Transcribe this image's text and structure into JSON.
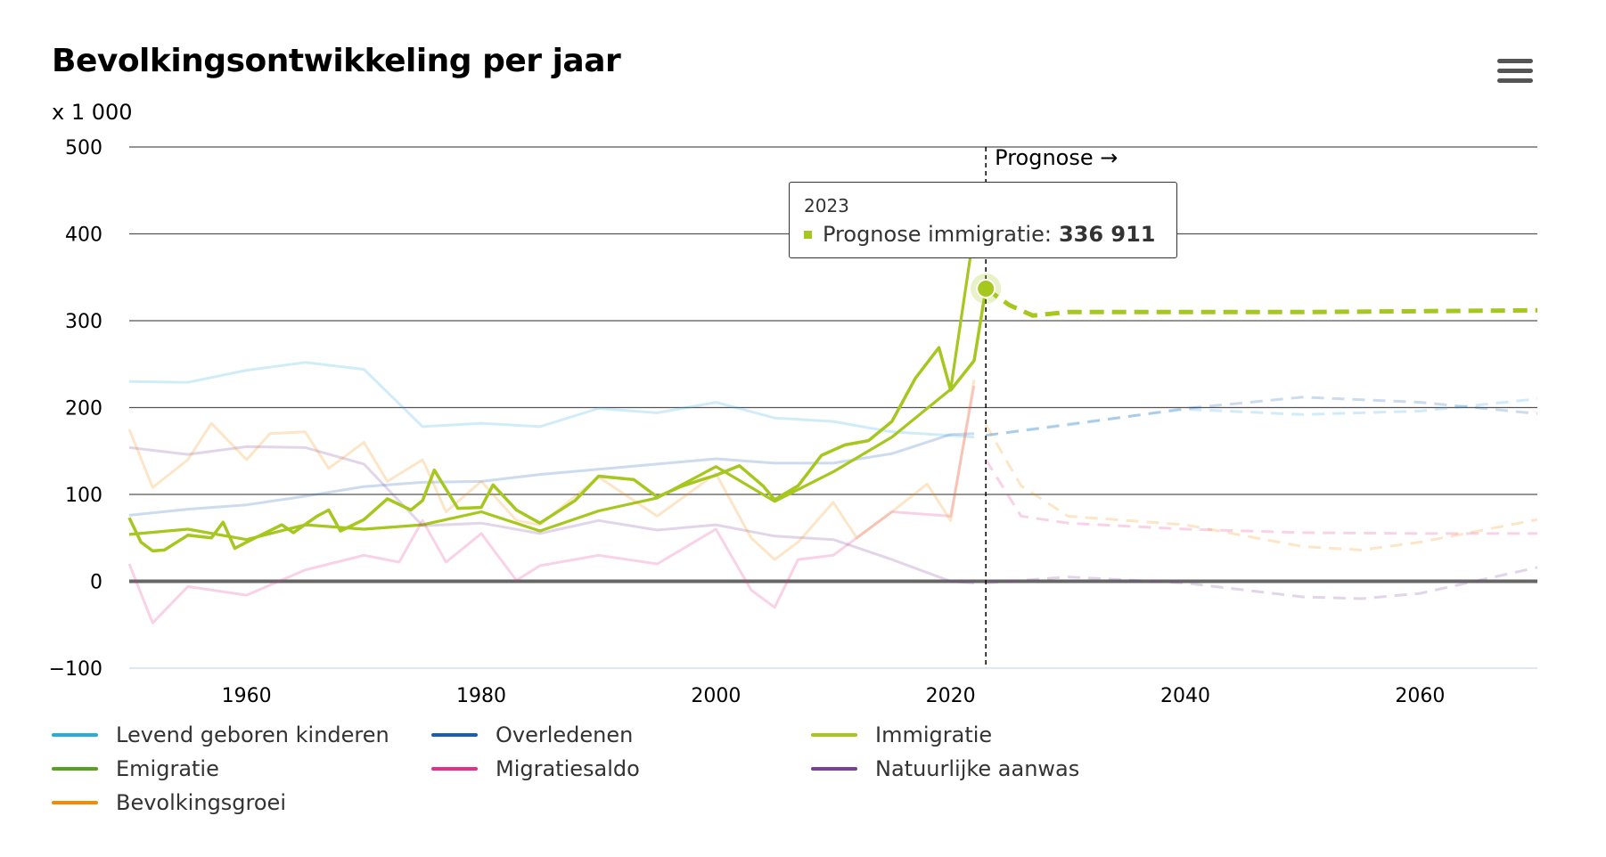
{
  "title": "Bevolkingsontwikkeling per jaar",
  "unit": "x 1 000",
  "menu_icon": "hamburger-menu-icon",
  "prognose_label": "Prognose →",
  "tooltip": {
    "year": "2023",
    "label": "Prognose immigratie:",
    "value": "336 911",
    "color": "#a5c71e"
  },
  "chart_data": {
    "type": "line",
    "x_range": [
      1950,
      2070
    ],
    "ylim": [
      -100,
      500
    ],
    "yticks": [
      "500",
      "400",
      "300",
      "200",
      "100",
      "0",
      "−100"
    ],
    "xticks": [
      "1960",
      "1980",
      "2000",
      "2020",
      "2040",
      "2060"
    ],
    "prognose_start": 2023,
    "grid": true,
    "legend_position": "bottom",
    "highlighted_series": "Immigratie",
    "series": [
      {
        "name": "Levend geboren kinderen",
        "color": "#2aaadd",
        "x": [
          1950,
          1955,
          1960,
          1965,
          1970,
          1975,
          1980,
          1985,
          1990,
          1995,
          2000,
          2005,
          2010,
          2015,
          2020,
          2022
        ],
        "values": [
          230,
          229,
          243,
          252,
          244,
          178,
          182,
          178,
          199,
          194,
          206,
          188,
          184,
          172,
          168,
          166
        ],
        "forecast": {
          "x": [
            2023,
            2030,
            2040,
            2050,
            2060,
            2070
          ],
          "values": [
            168,
            181,
            198,
            192,
            196,
            210
          ]
        }
      },
      {
        "name": "Overledenen",
        "color": "#1b5cb6",
        "x": [
          1950,
          1955,
          1960,
          1965,
          1970,
          1975,
          1980,
          1985,
          1990,
          1995,
          2000,
          2005,
          2010,
          2015,
          2020,
          2022
        ],
        "values": [
          76,
          83,
          88,
          98,
          109,
          114,
          115,
          123,
          129,
          135,
          141,
          136,
          136,
          147,
          169,
          170
        ],
        "forecast": {
          "x": [
            2023,
            2030,
            2040,
            2050,
            2060,
            2070
          ],
          "values": [
            168,
            180,
            199,
            212,
            206,
            193
          ]
        }
      },
      {
        "name": "Immigratie",
        "color": "#a5c71e",
        "x": [
          1950,
          1955,
          1960,
          1965,
          1970,
          1975,
          1980,
          1985,
          1990,
          1995,
          2000,
          2005,
          2010,
          2015,
          2020,
          2022
        ],
        "values": [
          54,
          60,
          48,
          65,
          60,
          65,
          80,
          58,
          81,
          96,
          132,
          92,
          126,
          166,
          221,
          403
        ],
        "forecast": {
          "x": [
            2023,
            2025,
            2027,
            2030,
            2040,
            2050,
            2060,
            2070
          ],
          "values": [
            336.911,
            318,
            306,
            310,
            310,
            310,
            311,
            312
          ]
        }
      },
      {
        "name": "Emigratie",
        "color": "#53a31d",
        "x": [
          1950,
          1951,
          1952,
          1953,
          1955,
          1957,
          1958,
          1959,
          1960,
          1963,
          1964,
          1966,
          1967,
          1968,
          1970,
          1972,
          1974,
          1975,
          1976,
          1978,
          1980,
          1981,
          1983,
          1985,
          1988,
          1990,
          1993,
          1995,
          1997,
          1999,
          2000,
          2002,
          2004,
          2005,
          2007,
          2009,
          2011,
          2013,
          2015,
          2017,
          2019,
          2020,
          2022,
          2023
        ],
        "values": [
          73,
          45,
          35,
          36,
          53,
          50,
          68,
          38,
          45,
          65,
          56,
          75,
          82,
          58,
          71,
          95,
          82,
          93,
          128,
          84,
          85,
          111,
          82,
          67,
          93,
          121,
          117,
          97,
          109,
          118,
          122,
          133,
          110,
          94,
          110,
          145,
          157,
          162,
          184,
          234,
          269,
          220,
          254,
          337
        ],
        "forecast": null
      },
      {
        "name": "Migratiesaldo",
        "color": "#e2318b",
        "x": [
          1950,
          1952,
          1955,
          1960,
          1965,
          1970,
          1973,
          1975,
          1977,
          1980,
          1983,
          1985,
          1990,
          1995,
          2000,
          2003,
          2005,
          2007,
          2010,
          2015,
          2020,
          2022
        ],
        "values": [
          20,
          -48,
          -6,
          -16,
          13,
          30,
          22,
          70,
          22,
          55,
          1,
          18,
          30,
          20,
          60,
          -10,
          -30,
          25,
          30,
          80,
          75,
          225
        ],
        "forecast": {
          "x": [
            2023,
            2026,
            2030,
            2040,
            2050,
            2060,
            2070
          ],
          "values": [
            140,
            75,
            67,
            60,
            56,
            55,
            55
          ]
        }
      },
      {
        "name": "Natuurlijke aanwas",
        "color": "#7b3f9a",
        "x": [
          1950,
          1955,
          1960,
          1965,
          1970,
          1975,
          1980,
          1985,
          1990,
          1995,
          2000,
          2005,
          2010,
          2015,
          2020,
          2022
        ],
        "values": [
          154,
          146,
          155,
          154,
          135,
          64,
          67,
          55,
          70,
          59,
          65,
          52,
          48,
          25,
          0,
          -2
        ],
        "forecast": {
          "x": [
            2023,
            2030,
            2040,
            2050,
            2055,
            2060,
            2070
          ],
          "values": [
            -2,
            5,
            -2,
            -18,
            -20,
            -14,
            16
          ]
        }
      },
      {
        "name": "Bevolkingsgroei",
        "color": "#f28c00",
        "x": [
          1950,
          1952,
          1955,
          1957,
          1960,
          1962,
          1965,
          1967,
          1970,
          1972,
          1975,
          1977,
          1980,
          1983,
          1985,
          1990,
          1995,
          2000,
          2003,
          2005,
          2007,
          2010,
          2012,
          2015,
          2018,
          2020,
          2022
        ],
        "values": [
          175,
          108,
          140,
          182,
          140,
          170,
          172,
          130,
          160,
          115,
          140,
          80,
          115,
          70,
          65,
          120,
          75,
          124,
          50,
          25,
          45,
          91,
          50,
          80,
          112,
          70,
          232
        ],
        "forecast": {
          "x": [
            2023,
            2026,
            2030,
            2040,
            2050,
            2055,
            2060,
            2070
          ],
          "values": [
            180,
            110,
            75,
            65,
            40,
            36,
            45,
            71
          ]
        }
      }
    ],
    "legend": [
      {
        "name": "Levend geboren kinderen",
        "color": "#2aaadd"
      },
      {
        "name": "Overledenen",
        "color": "#1b5cb6"
      },
      {
        "name": "Immigratie",
        "color": "#a5c71e"
      },
      {
        "name": "Emigratie",
        "color": "#53a31d"
      },
      {
        "name": "Migratiesaldo",
        "color": "#e2318b"
      },
      {
        "name": "Natuurlijke aanwas",
        "color": "#7b3f9a"
      },
      {
        "name": "Bevolkingsgroei",
        "color": "#f28c00"
      }
    ]
  }
}
